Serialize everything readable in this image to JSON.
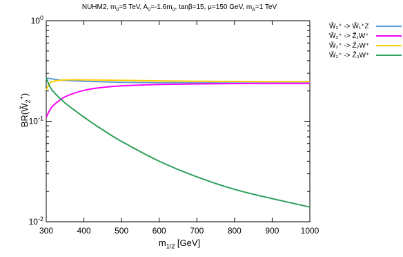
{
  "chart_data": {
    "type": "line",
    "title_parts": {
      "p1": "NUHM2, m",
      "s1": "0",
      "p2": "=5 TeV, A",
      "s2": "0",
      "p3": "=-1.6m",
      "s3": "0",
      "p4": ", tanβ=15, μ=150 GeV, m",
      "s4": "A",
      "p5": "=1 TeV"
    },
    "xlabel_parts": {
      "base": "m",
      "sub": "1/2",
      "rest": " [GeV]"
    },
    "ylabel_parts": {
      "base": "BR(",
      "tilde": "W̃",
      "sub": "2",
      "sup": "+",
      "close": ")"
    },
    "xlim": [
      300,
      1000
    ],
    "ylim": [
      0.01,
      1
    ],
    "yscale": "log",
    "x_ticks": [
      "300",
      "400",
      "500",
      "600",
      "700",
      "800",
      "900",
      "1000"
    ],
    "y_ticks": [
      {
        "base": "10",
        "exp": "0",
        "value": 1
      },
      {
        "base": "10",
        "exp": "-1",
        "value": 0.1
      },
      {
        "base": "10",
        "exp": "-2",
        "value": 0.01
      }
    ],
    "legend_position": "outside-top-right",
    "series": [
      {
        "name": "W̃₂⁺ -> W̃₁⁺Z",
        "color": "#5b9bd5",
        "x": [
          300,
          320,
          350,
          400,
          500,
          600,
          700,
          800,
          900,
          1000
        ],
        "y": [
          0.27,
          0.262,
          0.255,
          0.25,
          0.244,
          0.242,
          0.241,
          0.24,
          0.24,
          0.24
        ]
      },
      {
        "name": "W̃₂⁺ -> Z̃₁W⁺",
        "color": "#ff00ff",
        "x": [
          300,
          310,
          320,
          350,
          400,
          450,
          500,
          600,
          700,
          800,
          900,
          1000
        ],
        "y": [
          0.11,
          0.13,
          0.145,
          0.175,
          0.203,
          0.217,
          0.225,
          0.232,
          0.235,
          0.237,
          0.238,
          0.238
        ]
      },
      {
        "name": "W̃₂⁺ -> Z̃₂W⁺",
        "color": "#ffcc00",
        "x": [
          300,
          310,
          320,
          350,
          400,
          500,
          600,
          700,
          800,
          900,
          1000
        ],
        "y": [
          0.205,
          0.24,
          0.25,
          0.258,
          0.258,
          0.255,
          0.252,
          0.25,
          0.249,
          0.248,
          0.248
        ]
      },
      {
        "name": "W̃₂⁺ -> Z̃₃W⁺",
        "color": "#2ca05a",
        "x": [
          300,
          310,
          320,
          350,
          400,
          450,
          500,
          600,
          700,
          800,
          900,
          1000
        ],
        "y": [
          0.27,
          0.22,
          0.195,
          0.152,
          0.11,
          0.082,
          0.063,
          0.04,
          0.028,
          0.021,
          0.017,
          0.014
        ]
      }
    ]
  }
}
